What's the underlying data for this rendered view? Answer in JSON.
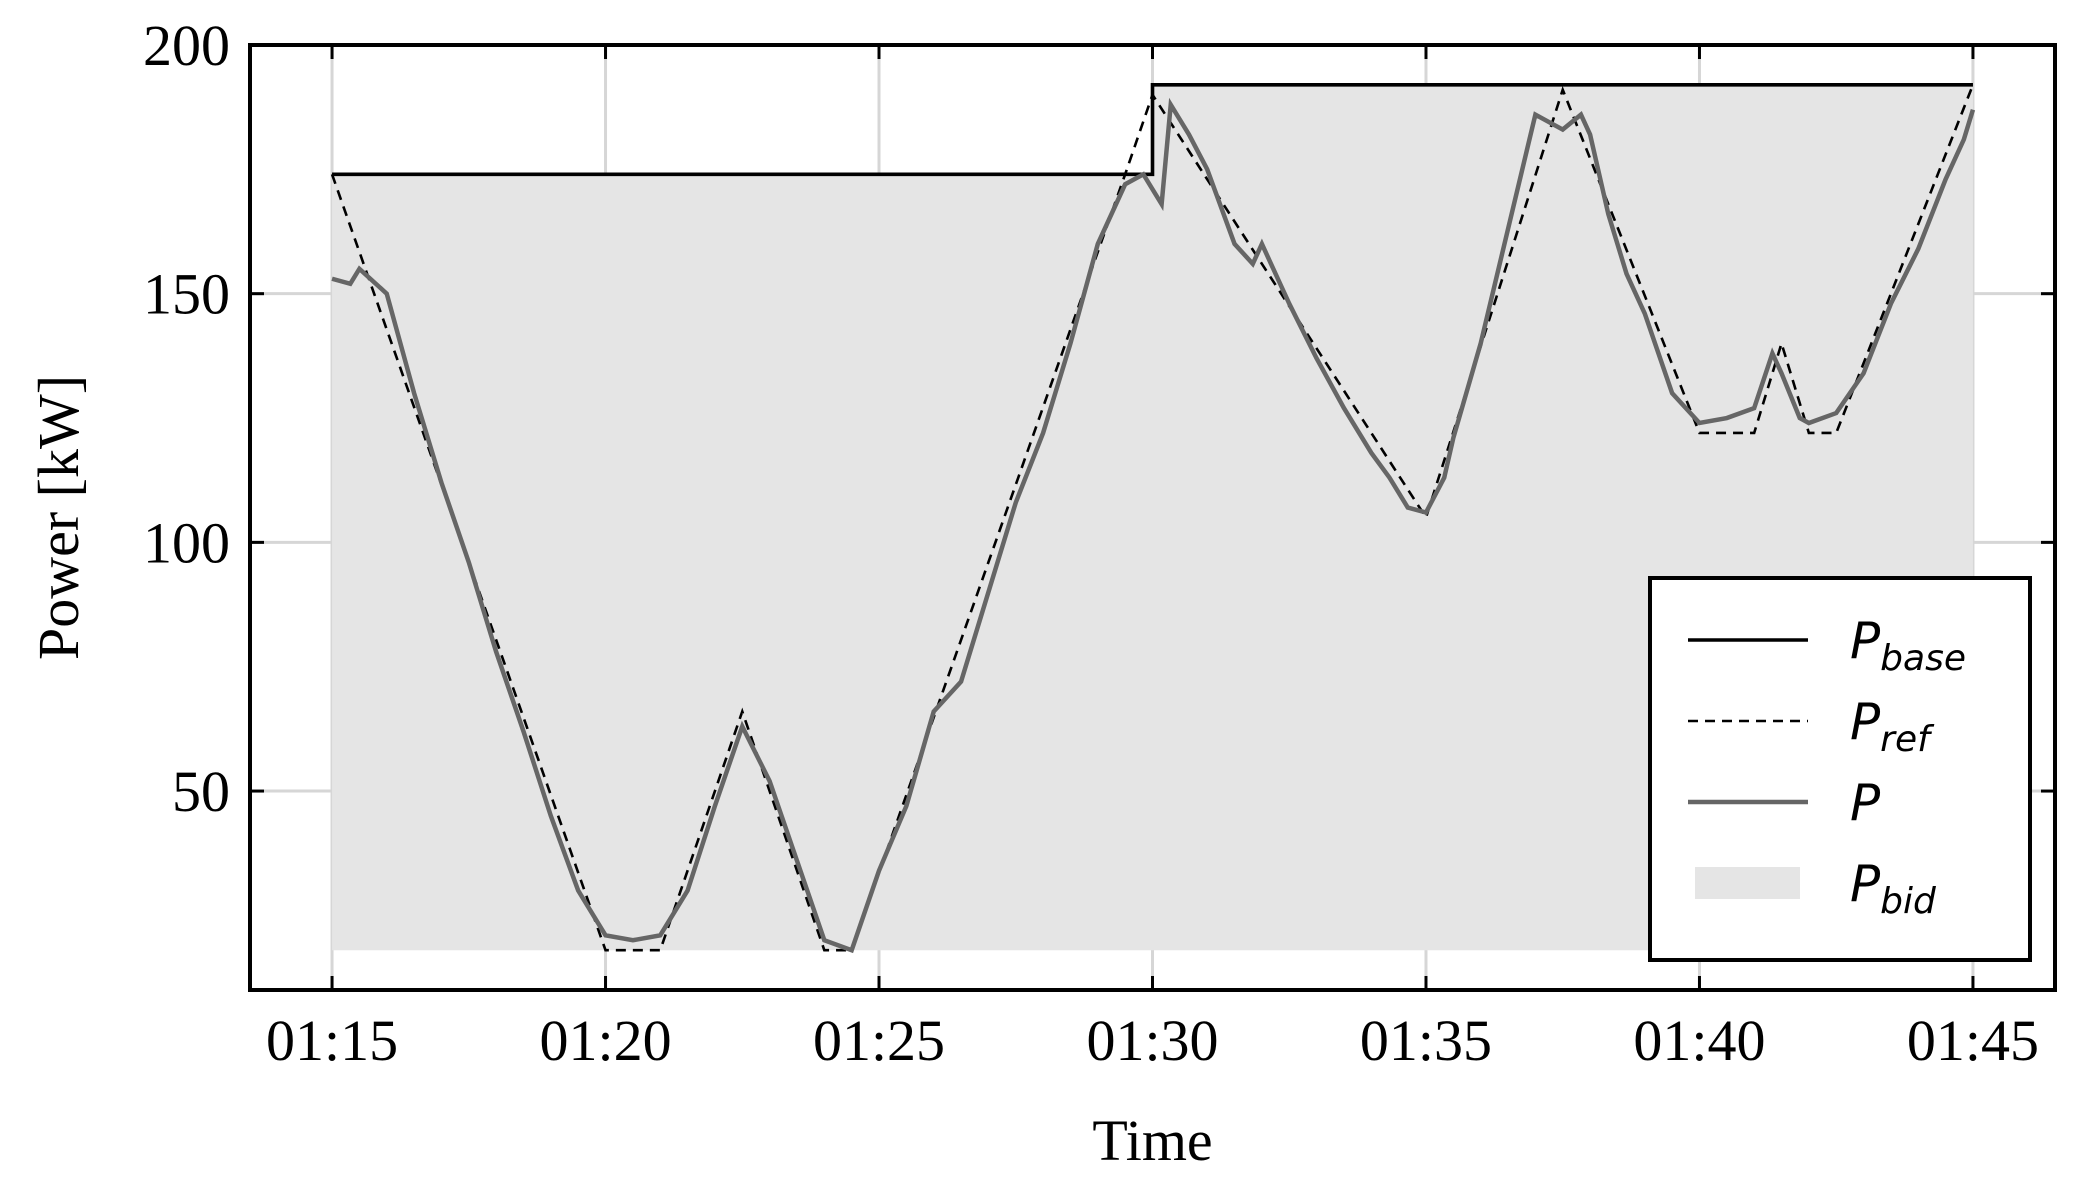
{
  "chart_data": {
    "type": "line",
    "title": "",
    "xlabel": "Time",
    "ylabel": "Power [kW]",
    "x_ticks": [
      "01:15",
      "01:20",
      "01:25",
      "01:30",
      "01:35",
      "01:40",
      "01:45"
    ],
    "y_ticks": [
      "50",
      "100",
      "150",
      "200"
    ],
    "xlim": [
      "01:13:30",
      "01:46:30"
    ],
    "ylim": [
      10,
      200
    ],
    "grid": true,
    "legend_position": "lower-right",
    "series": [
      {
        "name": "P_base",
        "legend_main": "P",
        "legend_sub": "base",
        "style": "solid",
        "color": "#000000",
        "x": [
          "01:15:00",
          "01:30:00",
          "01:30:00",
          "01:45:00"
        ],
        "y": [
          174,
          174,
          192,
          192
        ]
      },
      {
        "name": "P_ref",
        "legend_main": "P",
        "legend_sub": "ref",
        "style": "dashed",
        "color": "#000000",
        "x": [
          "01:15:00",
          "01:20:00",
          "01:21:00",
          "01:22:30",
          "01:24:00",
          "01:24:30",
          "01:29:30",
          "01:30:00",
          "01:35:00",
          "01:37:30",
          "01:40:00",
          "01:41:00",
          "01:41:30",
          "01:42:00",
          "01:42:30",
          "01:45:00"
        ],
        "y": [
          174,
          18,
          18,
          66,
          18,
          18,
          174,
          190,
          105,
          191,
          122,
          122,
          140,
          122,
          122,
          192
        ]
      },
      {
        "name": "P",
        "legend_main": "P",
        "legend_sub": "",
        "style": "solid",
        "color": "#666666",
        "x": [
          "01:15:00",
          "01:15:20",
          "01:15:30",
          "01:16:00",
          "01:16:30",
          "01:17:00",
          "01:17:30",
          "01:18:00",
          "01:18:30",
          "01:19:00",
          "01:19:30",
          "01:20:00",
          "01:20:30",
          "01:21:00",
          "01:21:30",
          "01:22:00",
          "01:22:30",
          "01:23:00",
          "01:23:30",
          "01:24:00",
          "01:24:30",
          "01:25:00",
          "01:25:30",
          "01:26:00",
          "01:26:30",
          "01:27:00",
          "01:27:30",
          "01:28:00",
          "01:28:30",
          "01:29:00",
          "01:29:30",
          "01:29:50",
          "01:30:10",
          "01:30:20",
          "01:30:40",
          "01:31:00",
          "01:31:30",
          "01:31:50",
          "01:32:00",
          "01:32:30",
          "01:33:00",
          "01:33:30",
          "01:34:00",
          "01:34:20",
          "01:34:40",
          "01:35:00",
          "01:35:20",
          "01:35:30",
          "01:36:00",
          "01:36:30",
          "01:37:00",
          "01:37:30",
          "01:37:50",
          "01:38:00",
          "01:38:20",
          "01:38:40",
          "01:39:00",
          "01:39:30",
          "01:40:00",
          "01:40:30",
          "01:41:00",
          "01:41:20",
          "01:41:30",
          "01:41:50",
          "01:42:00",
          "01:42:30",
          "01:43:00",
          "01:43:30",
          "01:44:00",
          "01:44:30",
          "01:44:50",
          "01:45:00"
        ],
        "y": [
          153,
          152,
          155,
          150,
          130,
          112,
          96,
          78,
          62,
          45,
          30,
          21,
          20,
          21,
          30,
          47,
          63,
          52,
          36,
          20,
          18,
          34,
          47,
          66,
          72,
          90,
          108,
          122,
          140,
          160,
          172,
          174,
          168,
          188,
          182,
          175,
          160,
          156,
          160,
          148,
          137,
          127,
          118,
          113,
          107,
          106,
          113,
          121,
          140,
          163,
          186,
          183,
          186,
          182,
          166,
          154,
          146,
          130,
          124,
          125,
          127,
          138,
          134,
          125,
          124,
          126,
          134,
          148,
          159,
          173,
          181,
          187
        ]
      },
      {
        "name": "P_bid",
        "legend_main": "P",
        "legend_sub": "bid",
        "style": "fill",
        "color": "#e5e5e5",
        "x": [
          "01:15:00",
          "01:30:00",
          "01:30:00",
          "01:45:00"
        ],
        "y_upper": [
          174,
          174,
          192,
          192
        ],
        "y_lower": [
          18,
          18,
          18,
          18
        ]
      }
    ]
  }
}
